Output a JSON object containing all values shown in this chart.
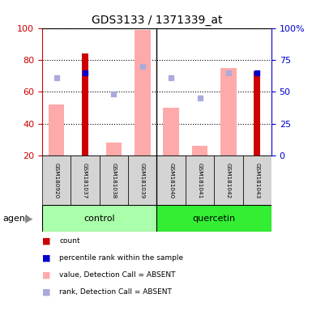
{
  "title": "GDS3133 / 1371339_at",
  "samples": [
    "GSM180920",
    "GSM181037",
    "GSM181038",
    "GSM181039",
    "GSM181040",
    "GSM181041",
    "GSM181042",
    "GSM181043"
  ],
  "count_values": [
    0,
    84,
    0,
    0,
    0,
    0,
    0,
    73
  ],
  "rank_values": [
    0,
    65,
    0,
    0,
    0,
    0,
    0,
    65
  ],
  "value_absent": [
    52,
    0,
    28,
    99,
    50,
    26,
    75,
    0
  ],
  "rank_absent": [
    61,
    0,
    48,
    70,
    61,
    45,
    65,
    0
  ],
  "ylim_left": [
    20,
    100
  ],
  "left_ticks": [
    20,
    40,
    60,
    80,
    100
  ],
  "right_ticks": [
    0,
    25,
    50,
    75,
    100
  ],
  "right_tick_labels": [
    "0",
    "25",
    "50",
    "75",
    "100%"
  ],
  "count_color": "#cc0000",
  "rank_color": "#0000cc",
  "value_absent_color": "#ffaaaa",
  "rank_absent_color": "#aaaadd",
  "bg_color": "#ffffff",
  "left_axis_color": "#cc0000",
  "right_axis_color": "#0000cc",
  "ctrl_color": "#aaffaa",
  "quer_color": "#33ee33",
  "sample_box_color": "#d4d4d4",
  "legend_items": [
    {
      "color": "#cc0000",
      "label": "count"
    },
    {
      "color": "#0000cc",
      "label": "percentile rank within the sample"
    },
    {
      "color": "#ffaaaa",
      "label": "value, Detection Call = ABSENT"
    },
    {
      "color": "#aaaadd",
      "label": "rank, Detection Call = ABSENT"
    }
  ]
}
